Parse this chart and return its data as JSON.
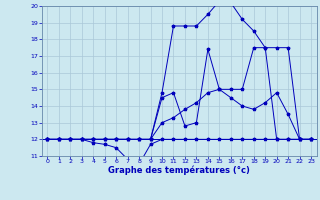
{
  "title": "Graphe des températures (°c)",
  "bg_color": "#cce8f0",
  "grid_color": "#aac8d8",
  "line_color": "#0000bb",
  "x_min": 0,
  "x_max": 23,
  "y_min": 11,
  "y_max": 20,
  "hours": [
    0,
    1,
    2,
    3,
    4,
    5,
    6,
    7,
    8,
    9,
    10,
    11,
    12,
    13,
    14,
    15,
    16,
    17,
    18,
    19,
    20,
    21,
    22,
    23
  ],
  "c1": [
    12,
    12,
    12,
    12,
    11.8,
    11.7,
    11.5,
    10.8,
    10.5,
    11.7,
    12,
    12,
    12,
    12,
    12,
    12,
    12,
    12,
    12,
    12,
    12,
    12,
    12,
    12
  ],
  "c2": [
    12,
    12,
    12,
    12,
    12,
    12,
    12,
    12,
    12,
    12,
    13.0,
    13.3,
    13.8,
    14.2,
    14.8,
    15.0,
    14.5,
    14.0,
    13.8,
    14.2,
    14.8,
    13.5,
    12,
    12
  ],
  "c3": [
    12,
    12,
    12,
    12,
    12,
    12,
    12,
    12,
    12,
    12,
    14.5,
    14.8,
    12.8,
    13.0,
    17.4,
    15.0,
    15.0,
    15.0,
    17.5,
    17.5,
    17.5,
    17.5,
    12,
    12
  ],
  "c4": [
    12,
    12,
    12,
    12,
    12,
    12,
    12,
    12,
    12,
    12,
    14.8,
    18.8,
    18.8,
    18.8,
    19.5,
    20.3,
    20.2,
    19.2,
    18.5,
    17.5,
    12,
    12,
    12,
    12
  ]
}
